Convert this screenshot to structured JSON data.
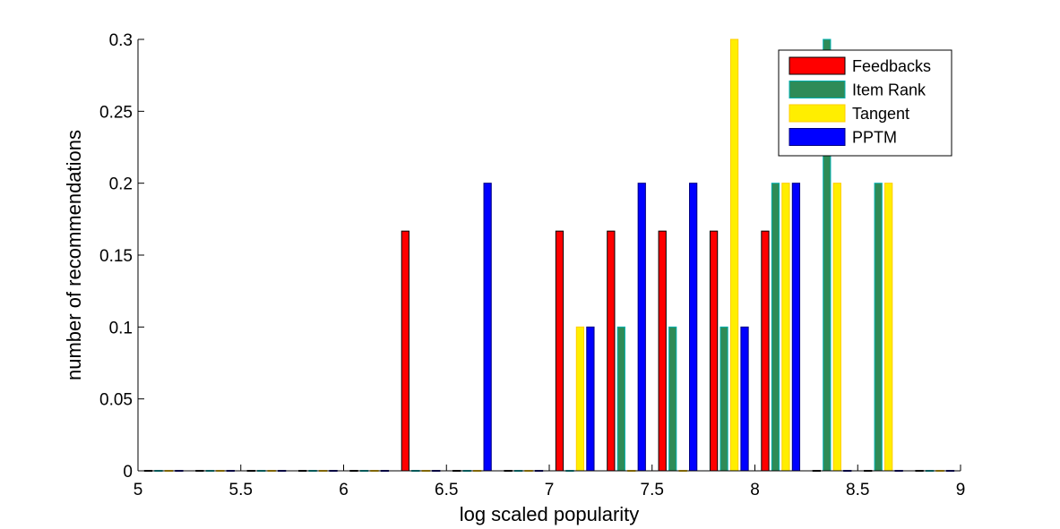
{
  "chart_data": {
    "type": "bar",
    "title": "",
    "xlabel": "log scaled popularity",
    "ylabel": "number of recommendations",
    "xlim": [
      5,
      9
    ],
    "ylim": [
      0,
      0.3
    ],
    "xticks": [
      "5",
      "5.5",
      "6",
      "6.5",
      "7",
      "7.5",
      "8",
      "8.5",
      "9"
    ],
    "yticks": [
      "0",
      "0.05",
      "0.1",
      "0.15",
      "0.2",
      "0.25",
      "0.3"
    ],
    "grid": false,
    "legend_position": "top-right",
    "bin_centers": [
      5.125,
      5.375,
      5.625,
      5.875,
      6.125,
      6.375,
      6.625,
      6.875,
      7.125,
      7.375,
      7.625,
      7.875,
      8.125,
      8.375,
      8.625,
      8.875
    ],
    "bin_width": 0.25,
    "series": [
      {
        "name": "Feedbacks",
        "color": "#ff0000",
        "edge": "#000000",
        "values": [
          0,
          0,
          0,
          0,
          0,
          0.1667,
          0,
          0,
          0.1667,
          0.1667,
          0.1667,
          0.1667,
          0.1667,
          0,
          0,
          0
        ]
      },
      {
        "name": "Item Rank",
        "color": "#2e8b57",
        "edge": "#00b0b0",
        "values": [
          0,
          0,
          0,
          0,
          0,
          0,
          0,
          0,
          0,
          0.1,
          0.1,
          0.1,
          0.2,
          0.3,
          0.2,
          0
        ]
      },
      {
        "name": "Tangent",
        "color": "#ffee00",
        "edge": "#ffcc00",
        "values": [
          0,
          0,
          0,
          0,
          0,
          0,
          0,
          0,
          0.1,
          0,
          0,
          0.3,
          0.2,
          0.2,
          0.2,
          0
        ]
      },
      {
        "name": "PPTM",
        "color": "#0000ff",
        "edge": "#000080",
        "values": [
          0,
          0,
          0,
          0,
          0,
          0,
          0.2,
          0,
          0.1,
          0.2,
          0.2,
          0.1,
          0.2,
          0,
          0,
          0
        ]
      }
    ]
  }
}
